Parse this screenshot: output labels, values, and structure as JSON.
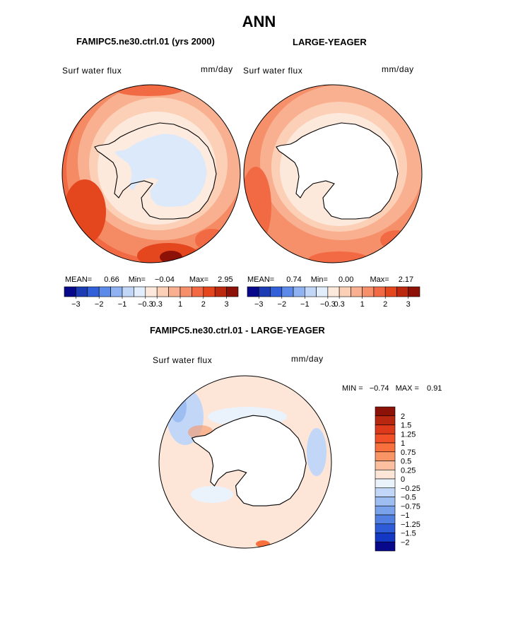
{
  "header": {
    "title": "ANN"
  },
  "panels": [
    {
      "title": "FAMIPC5.ne30.ctrl.01 (yrs 2000)",
      "left_label": "Surf water flux",
      "right_label": "mm/day",
      "stats": {
        "mean_label": "MEAN=",
        "mean": "0.66",
        "min_label": "Min=",
        "min": "−0.04",
        "max_label": "Max=",
        "max": "2.95"
      }
    },
    {
      "title": "LARGE-YEAGER",
      "left_label": "Surf water flux",
      "right_label": "mm/day",
      "stats": {
        "mean_label": "MEAN=",
        "mean": "0.74",
        "min_label": "Min=",
        "min": "0.00",
        "max_label": "Max=",
        "max": "2.17"
      }
    },
    {
      "title": "FAMIPC5.ne30.ctrl.01 - LARGE-YEAGER",
      "left_label": "Surf water flux",
      "right_label": "mm/day",
      "stats": {
        "min_label": "MIN =",
        "min": "−0.74",
        "max_label": "MAX =",
        "max": "0.91"
      }
    }
  ],
  "chart_data": [
    {
      "type": "polar-contour-map",
      "title": "FAMIPC5.ne30.ctrl.01 (yrs 2000)",
      "variable": "Surf water flux",
      "units": "mm/day",
      "mean": 0.66,
      "min": -0.04,
      "max": 2.95,
      "colorbar": {
        "orientation": "horizontal",
        "colors": [
          "#08088a",
          "#1c3cb4",
          "#3260d8",
          "#5c8ae8",
          "#8fb2f2",
          "#c2d6f8",
          "#e2eefc",
          "#fde8dc",
          "#fcd0b6",
          "#f9b090",
          "#f6906a",
          "#f26a44",
          "#e4461e",
          "#bb2a0e",
          "#8c1208"
        ],
        "ticks": [
          "−3",
          "−2",
          "−1",
          "−0.3",
          "0.3",
          "1",
          "2",
          "3"
        ]
      }
    },
    {
      "type": "polar-contour-map",
      "title": "LARGE-YEAGER",
      "variable": "Surf water flux",
      "units": "mm/day",
      "mean": 0.74,
      "min": 0.0,
      "max": 2.17,
      "colorbar": {
        "orientation": "horizontal",
        "colors": [
          "#08088a",
          "#1c3cb4",
          "#3260d8",
          "#5c8ae8",
          "#8fb2f2",
          "#c2d6f8",
          "#e2eefc",
          "#fde8dc",
          "#fcd0b6",
          "#f9b090",
          "#f6906a",
          "#f26a44",
          "#e4461e",
          "#bb2a0e",
          "#8c1208"
        ],
        "ticks": [
          "−3",
          "−2",
          "−1",
          "−0.3",
          "0.3",
          "1",
          "2",
          "3"
        ]
      }
    },
    {
      "type": "polar-contour-map",
      "title": "FAMIPC5.ne30.ctrl.01 - LARGE-YEAGER",
      "variable": "Surf water flux",
      "units": "mm/day",
      "min": -0.74,
      "max": 0.91,
      "colorbar": {
        "orientation": "vertical",
        "colors": [
          "#8c1208",
          "#b82810",
          "#dc3a1a",
          "#f25028",
          "#f7703e",
          "#f99464",
          "#fcc0a0",
          "#fde6d8",
          "#eaf2fc",
          "#c2d6f8",
          "#9ebef2",
          "#7aa2ea",
          "#5280e2",
          "#2e5cd8",
          "#1238c4",
          "#08088a"
        ],
        "ticks": [
          "2",
          "1.5",
          "1.25",
          "1",
          "0.75",
          "0.5",
          "0.25",
          "0",
          "−0.25",
          "−0.5",
          "−0.75",
          "−1",
          "−1.25",
          "−1.5",
          "−2"
        ]
      }
    }
  ]
}
